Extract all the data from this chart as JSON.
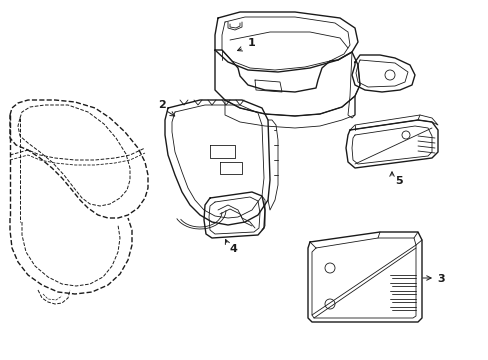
{
  "bg_color": "#ffffff",
  "line_color": "#1a1a1a",
  "lw": 1.0,
  "tlw": 0.6,
  "figsize": [
    4.89,
    3.6
  ],
  "dpi": 100
}
